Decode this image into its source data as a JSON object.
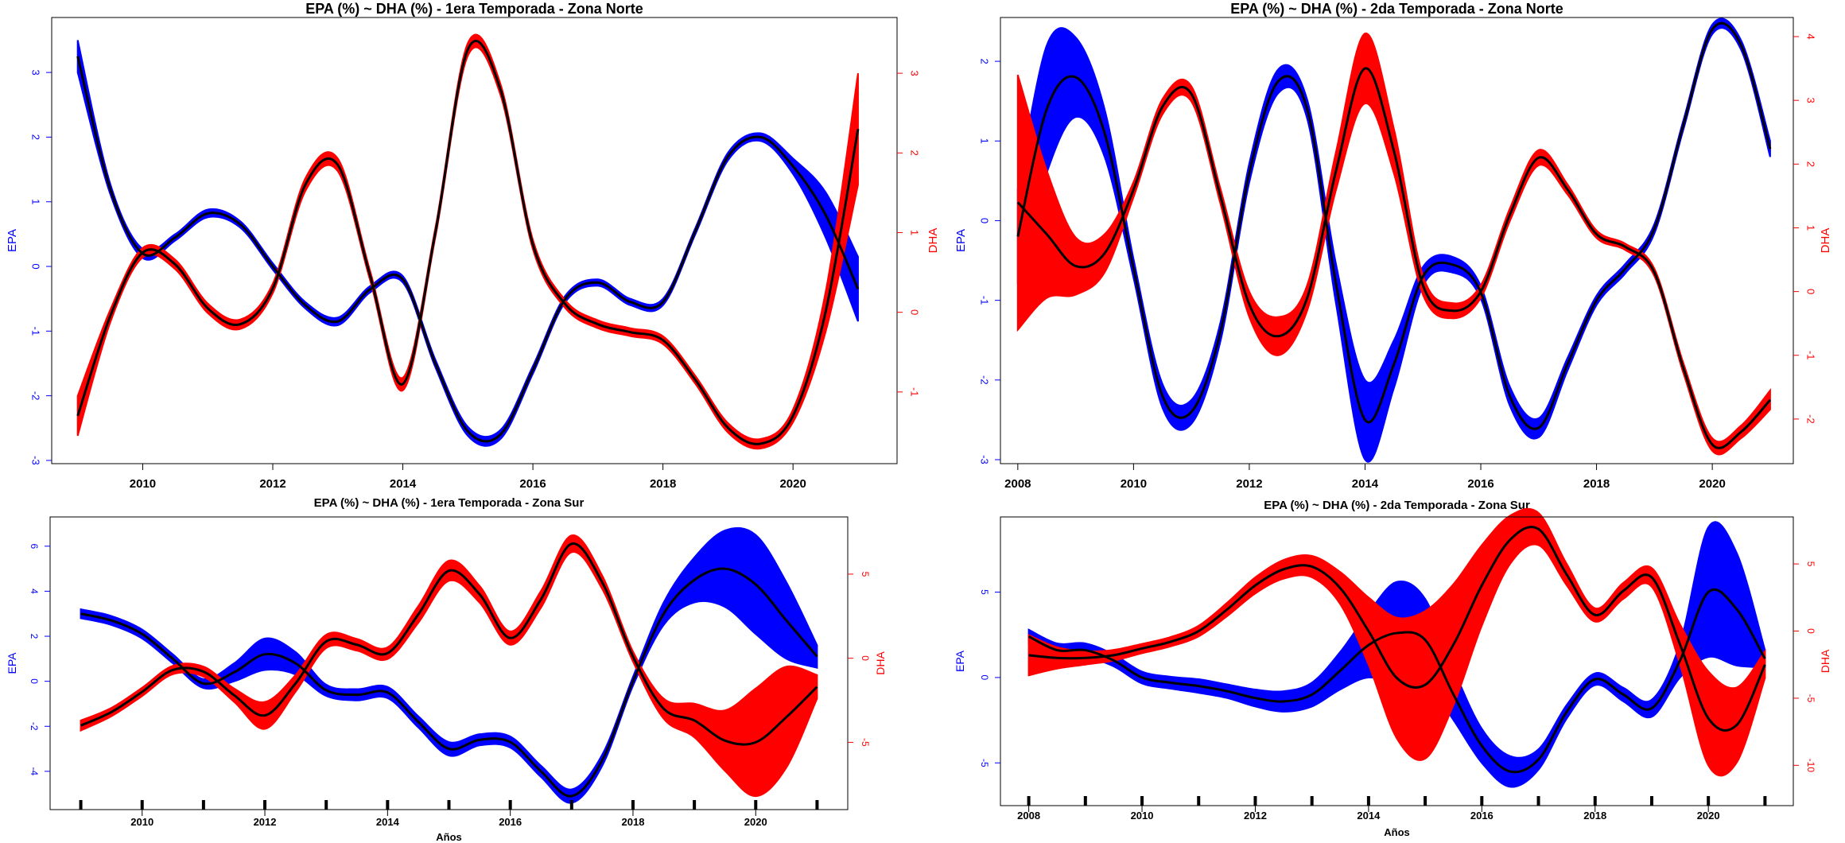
{
  "chart_data": [
    {
      "type": "line",
      "title": "EPA (%) ~ DHA (%) - 1era Temporada - Zona Norte",
      "xlabel": "",
      "ylabel": "EPA",
      "ylabel_right": "DHA",
      "xlim": [
        2008.6,
        2021.6
      ],
      "ylim": [
        -3.05,
        3.85
      ],
      "ylim_right": [
        -1.9,
        3.7
      ],
      "xticks": [
        2010,
        2012,
        2014,
        2016,
        2018,
        2020
      ],
      "yticks": [
        -3,
        -2,
        -1,
        0,
        1,
        2,
        3
      ],
      "yticks_right": [
        -1,
        0,
        1,
        2,
        3
      ],
      "year_marks": false,
      "series": [
        {
          "axis": "left",
          "color": "#0000ff",
          "x": [
            2009.0,
            2009.5,
            2010.0,
            2010.5,
            2011.0,
            2011.5,
            2012.0,
            2012.5,
            2013.0,
            2013.5,
            2014.0,
            2014.5,
            2015.0,
            2015.5,
            2016.0,
            2016.5,
            2017.0,
            2017.5,
            2018.0,
            2018.5,
            2019.0,
            2019.5,
            2020.0,
            2020.5,
            2021.0
          ],
          "y": [
            3.25,
            1.2,
            0.2,
            0.45,
            0.82,
            0.65,
            0.0,
            -0.6,
            -0.85,
            -0.35,
            -0.2,
            -1.5,
            -2.55,
            -2.6,
            -1.6,
            -0.5,
            -0.25,
            -0.55,
            -0.55,
            0.55,
            1.7,
            2.0,
            1.55,
            0.8,
            -0.35
          ],
          "band": [
            0.25,
            0.08,
            0.07,
            0.05,
            0.06,
            0.05,
            0.05,
            0.05,
            0.06,
            0.05,
            0.05,
            0.06,
            0.07,
            0.07,
            0.06,
            0.05,
            0.05,
            0.05,
            0.05,
            0.05,
            0.06,
            0.06,
            0.12,
            0.35,
            0.5
          ]
        },
        {
          "axis": "right",
          "color": "#ff0000",
          "x": [
            2009.0,
            2009.5,
            2010.0,
            2010.5,
            2011.0,
            2011.5,
            2012.0,
            2012.5,
            2013.0,
            2013.5,
            2014.0,
            2014.5,
            2015.0,
            2015.5,
            2016.0,
            2016.5,
            2017.0,
            2017.5,
            2018.0,
            2018.5,
            2019.0,
            2019.5,
            2020.0,
            2020.5,
            2021.0
          ],
          "y": [
            -1.3,
            -0.05,
            0.75,
            0.6,
            0.05,
            -0.15,
            0.3,
            1.6,
            1.85,
            0.45,
            -0.9,
            1.0,
            3.3,
            2.8,
            0.85,
            0.1,
            -0.15,
            -0.25,
            -0.35,
            -0.85,
            -1.45,
            -1.65,
            -1.3,
            0.0,
            2.3
          ],
          "band": [
            0.25,
            0.08,
            0.06,
            0.06,
            0.06,
            0.06,
            0.06,
            0.08,
            0.08,
            0.06,
            0.08,
            0.06,
            0.08,
            0.07,
            0.06,
            0.05,
            0.05,
            0.05,
            0.05,
            0.05,
            0.06,
            0.06,
            0.08,
            0.25,
            0.7
          ]
        }
      ]
    },
    {
      "type": "line",
      "title": "EPA (%) ~ DHA (%) - 2da Temporada - Zona Norte",
      "xlabel": "",
      "ylabel": "EPA",
      "ylabel_right": "DHA",
      "xlim": [
        2007.7,
        2021.4
      ],
      "ylim": [
        -3.05,
        2.55
      ],
      "ylim_right": [
        -2.7,
        4.3
      ],
      "xticks": [
        2008,
        2010,
        2012,
        2014,
        2016,
        2018,
        2020
      ],
      "yticks": [
        -3,
        -2,
        -1,
        0,
        1,
        2
      ],
      "yticks_right": [
        -2,
        -1,
        0,
        1,
        2,
        3,
        4
      ],
      "year_marks": false,
      "series": [
        {
          "axis": "left",
          "color": "#0000ff",
          "x": [
            2008.0,
            2008.5,
            2009.0,
            2009.5,
            2010.0,
            2010.5,
            2011.0,
            2011.5,
            2012.0,
            2012.5,
            2013.0,
            2013.5,
            2014.0,
            2014.5,
            2015.0,
            2015.5,
            2016.0,
            2016.5,
            2017.0,
            2017.5,
            2018.0,
            2018.5,
            2019.0,
            2019.5,
            2020.0,
            2020.5,
            2021.0
          ],
          "y": [
            -0.2,
            1.4,
            1.8,
            1.1,
            -0.6,
            -2.2,
            -2.4,
            -1.4,
            0.6,
            1.75,
            1.4,
            -0.8,
            -2.5,
            -1.8,
            -0.7,
            -0.55,
            -0.9,
            -2.2,
            -2.6,
            -1.8,
            -1.0,
            -0.6,
            -0.1,
            1.2,
            2.4,
            2.2,
            0.9
          ],
          "band": [
            0.6,
            0.8,
            0.5,
            0.3,
            0.12,
            0.15,
            0.15,
            0.12,
            0.12,
            0.15,
            0.12,
            0.25,
            0.5,
            0.3,
            0.12,
            0.1,
            0.08,
            0.12,
            0.12,
            0.08,
            0.06,
            0.06,
            0.06,
            0.06,
            0.06,
            0.06,
            0.1
          ]
        },
        {
          "axis": "right",
          "color": "#ff0000",
          "x": [
            2008.0,
            2008.5,
            2009.0,
            2009.5,
            2010.0,
            2010.5,
            2011.0,
            2011.5,
            2012.0,
            2012.5,
            2013.0,
            2013.5,
            2014.0,
            2014.5,
            2015.0,
            2015.5,
            2016.0,
            2016.5,
            2017.0,
            2017.5,
            2018.0,
            2018.5,
            2019.0,
            2019.5,
            2020.0,
            2020.5,
            2021.0
          ],
          "y": [
            1.4,
            0.9,
            0.4,
            0.6,
            1.6,
            2.9,
            3.1,
            1.5,
            -0.2,
            -0.7,
            -0.1,
            1.9,
            3.5,
            2.2,
            0.1,
            -0.3,
            0.0,
            1.2,
            2.1,
            1.6,
            0.9,
            0.7,
            0.3,
            -1.2,
            -2.4,
            -2.2,
            -1.7
          ],
          "band": [
            2.0,
            1.0,
            0.45,
            0.3,
            0.12,
            0.12,
            0.12,
            0.12,
            0.2,
            0.3,
            0.2,
            0.3,
            0.55,
            0.35,
            0.15,
            0.12,
            0.1,
            0.1,
            0.12,
            0.08,
            0.06,
            0.05,
            0.06,
            0.08,
            0.1,
            0.1,
            0.15
          ]
        }
      ]
    },
    {
      "type": "line",
      "title": "EPA (%) ~ DHA (%) - 1era Temporada - Zona Sur",
      "xlabel": "Años",
      "ylabel": "EPA",
      "ylabel_right": "DHA",
      "xlim": [
        2008.5,
        2021.5
      ],
      "ylim": [
        -5.7,
        7.3
      ],
      "ylim_right": [
        -9.0,
        8.4
      ],
      "xticks": [
        2010,
        2012,
        2014,
        2016,
        2018,
        2020
      ],
      "yticks": [
        -4,
        -2,
        0,
        2,
        4,
        6
      ],
      "yticks_right": [
        -5,
        0,
        5
      ],
      "year_marks": true,
      "marks_range": [
        2009,
        2021
      ],
      "series": [
        {
          "axis": "left",
          "color": "#0000ff",
          "x": [
            2009.0,
            2009.5,
            2010.0,
            2010.5,
            2011.0,
            2011.5,
            2012.0,
            2012.5,
            2013.0,
            2013.5,
            2014.0,
            2014.5,
            2015.0,
            2015.5,
            2016.0,
            2016.5,
            2017.0,
            2017.5,
            2018.0,
            2018.5,
            2019.0,
            2019.5,
            2020.0,
            2020.5,
            2021.0
          ],
          "y": [
            3.0,
            2.7,
            2.1,
            1.0,
            -0.1,
            0.4,
            1.2,
            0.8,
            -0.4,
            -0.6,
            -0.5,
            -1.8,
            -3.0,
            -2.6,
            -2.7,
            -4.0,
            -5.1,
            -3.5,
            0.0,
            3.0,
            4.5,
            5.0,
            4.3,
            2.7,
            1.1
          ],
          "band": [
            0.2,
            0.2,
            0.2,
            0.2,
            0.2,
            0.4,
            0.7,
            0.5,
            0.25,
            0.25,
            0.25,
            0.25,
            0.3,
            0.25,
            0.25,
            0.25,
            0.3,
            0.25,
            0.2,
            0.5,
            1.0,
            1.7,
            2.2,
            1.7,
            0.5
          ]
        },
        {
          "axis": "right",
          "color": "#ff0000",
          "x": [
            2009.0,
            2009.5,
            2010.0,
            2010.5,
            2011.0,
            2011.5,
            2012.0,
            2012.5,
            2013.0,
            2013.5,
            2014.0,
            2014.5,
            2015.0,
            2015.5,
            2016.0,
            2016.5,
            2017.0,
            2017.5,
            2018.0,
            2018.5,
            2019.0,
            2019.5,
            2020.0,
            2020.5,
            2021.0
          ],
          "y": [
            -4.0,
            -3.2,
            -2.0,
            -0.7,
            -0.8,
            -2.2,
            -3.4,
            -1.5,
            1.0,
            0.8,
            0.3,
            2.6,
            5.2,
            3.8,
            1.2,
            3.5,
            6.8,
            4.5,
            0.1,
            -3.0,
            -3.7,
            -4.9,
            -5.0,
            -3.5,
            -1.7
          ],
          "band": [
            0.3,
            0.25,
            0.25,
            0.25,
            0.3,
            0.4,
            0.8,
            0.5,
            0.4,
            0.35,
            0.35,
            0.5,
            0.6,
            0.5,
            0.4,
            0.5,
            0.5,
            0.4,
            0.3,
            0.6,
            1.0,
            1.8,
            3.2,
            3.0,
            0.7
          ]
        }
      ]
    },
    {
      "type": "line",
      "title": "EPA (%) ~ DHA (%) - 2da Temporada - Zona Sur",
      "xlabel": "Años",
      "ylabel": "EPA",
      "ylabel_right": "DHA",
      "xlim": [
        2007.5,
        2021.5
      ],
      "ylim": [
        -7.5,
        9.4
      ],
      "ylim_right": [
        -13.0,
        8.5
      ],
      "xticks": [
        2008,
        2010,
        2012,
        2014,
        2016,
        2018,
        2020
      ],
      "yticks": [
        -5,
        0,
        5
      ],
      "yticks_right": [
        -10,
        -5,
        0,
        5
      ],
      "year_marks": true,
      "marks_range": [
        2008,
        2021
      ],
      "series": [
        {
          "axis": "left",
          "color": "#0000ff",
          "x": [
            2008.0,
            2008.5,
            2009.0,
            2009.5,
            2010.0,
            2010.5,
            2011.0,
            2011.5,
            2012.0,
            2012.5,
            2013.0,
            2013.5,
            2014.0,
            2014.5,
            2015.0,
            2015.5,
            2016.0,
            2016.5,
            2017.0,
            2017.5,
            2018.0,
            2018.5,
            2019.0,
            2019.5,
            2020.0,
            2020.5,
            2021.0
          ],
          "y": [
            2.4,
            1.6,
            1.6,
            1.0,
            0.0,
            -0.3,
            -0.5,
            -0.8,
            -1.2,
            -1.4,
            -1.0,
            0.4,
            1.9,
            2.6,
            2.2,
            -1.0,
            -4.0,
            -5.5,
            -4.8,
            -2.0,
            -0.1,
            -1.0,
            -1.8,
            1.0,
            5.0,
            4.0,
            1.1
          ],
          "band": [
            0.4,
            0.4,
            0.4,
            0.35,
            0.35,
            0.35,
            0.4,
            0.4,
            0.5,
            0.6,
            0.7,
            1.1,
            1.9,
            3.0,
            2.4,
            1.5,
            1.0,
            0.9,
            0.6,
            0.4,
            0.35,
            0.4,
            0.5,
            1.0,
            3.8,
            3.3,
            0.5
          ]
        },
        {
          "axis": "right",
          "color": "#ff0000",
          "x": [
            2008.0,
            2008.5,
            2009.0,
            2009.5,
            2010.0,
            2010.5,
            2011.0,
            2011.5,
            2012.0,
            2012.5,
            2013.0,
            2013.5,
            2014.0,
            2014.5,
            2015.0,
            2015.5,
            2016.0,
            2016.5,
            2017.0,
            2017.5,
            2018.0,
            2018.5,
            2019.0,
            2019.5,
            2020.0,
            2020.5,
            2021.0
          ],
          "y": [
            -1.8,
            -2.0,
            -2.0,
            -1.8,
            -1.3,
            -0.8,
            0.0,
            1.6,
            3.4,
            4.6,
            4.8,
            3.2,
            0.0,
            -3.5,
            -4.0,
            -1.0,
            3.4,
            6.8,
            7.6,
            4.2,
            1.2,
            3.0,
            4.0,
            -1.0,
            -6.5,
            -7.0,
            -2.5
          ],
          "band": [
            1.5,
            0.8,
            0.5,
            0.4,
            0.35,
            0.35,
            0.4,
            0.5,
            0.6,
            0.7,
            0.8,
            1.2,
            2.5,
            4.5,
            5.5,
            4.5,
            3.0,
            1.8,
            1.2,
            0.8,
            0.5,
            0.6,
            0.7,
            1.5,
            3.5,
            2.8,
            1.0
          ]
        }
      ]
    }
  ]
}
